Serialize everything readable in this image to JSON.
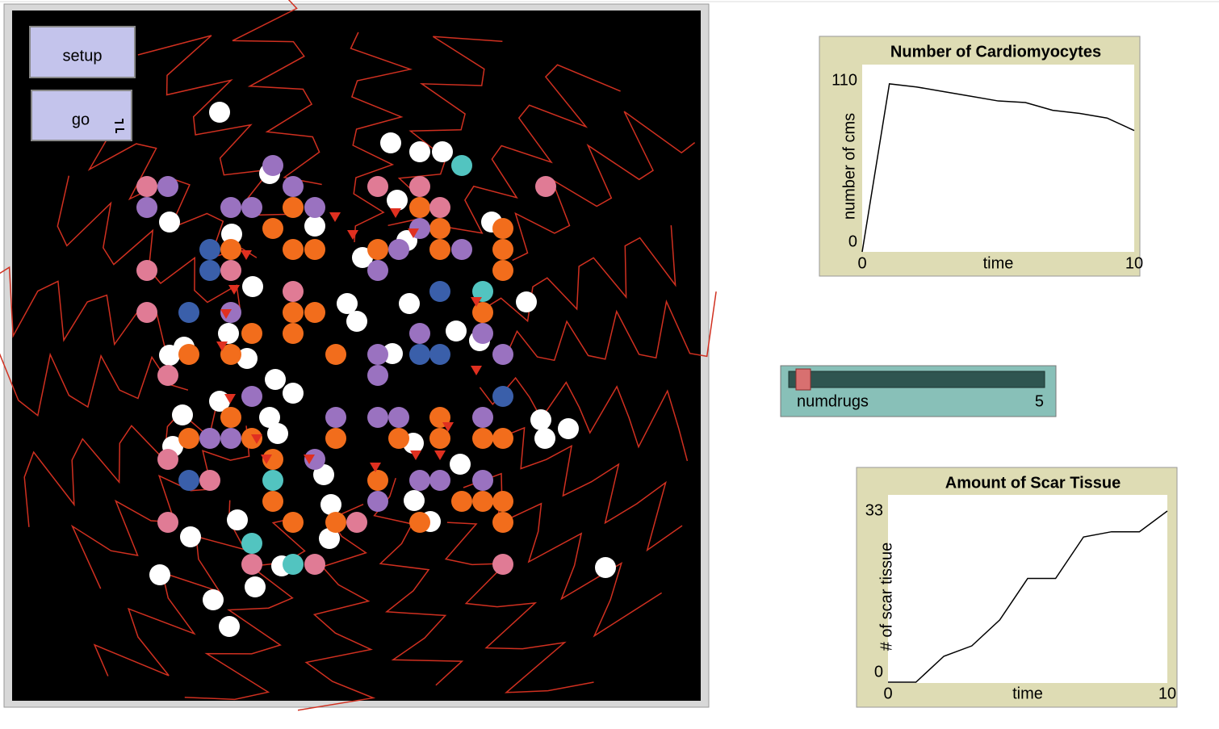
{
  "buttons": {
    "setup": "setup",
    "go": "go"
  },
  "slider": {
    "label": "numdrugs",
    "value": 5
  },
  "chart_data": [
    {
      "type": "line",
      "title": "Number of Cardiomyocytes",
      "x_label": "time",
      "y_label": "number of cms",
      "x": [
        0,
        1,
        2,
        3,
        4,
        5,
        6,
        7,
        8,
        9,
        10
      ],
      "values": [
        0,
        108,
        106,
        103,
        100,
        97,
        96,
        91,
        89,
        86,
        78
      ],
      "color": "#000000",
      "xlim": [
        0,
        10
      ],
      "ylim": [
        0,
        110
      ],
      "xticks": [
        0,
        10
      ],
      "yticks": [
        0,
        110
      ]
    },
    {
      "type": "line",
      "title": "Amount of Scar Tissue",
      "x_label": "time",
      "y_label": "# of scar tissue",
      "x": [
        0,
        1,
        2,
        3,
        4,
        5,
        6,
        7,
        8,
        9,
        10
      ],
      "values": [
        0,
        0,
        5,
        7,
        12,
        20,
        20,
        28,
        29,
        29,
        33
      ],
      "color": "#000000",
      "xlim": [
        0,
        10
      ],
      "ylim": [
        0,
        33
      ],
      "xticks": [
        0,
        10
      ],
      "yticks": [
        0,
        33
      ]
    }
  ]
}
